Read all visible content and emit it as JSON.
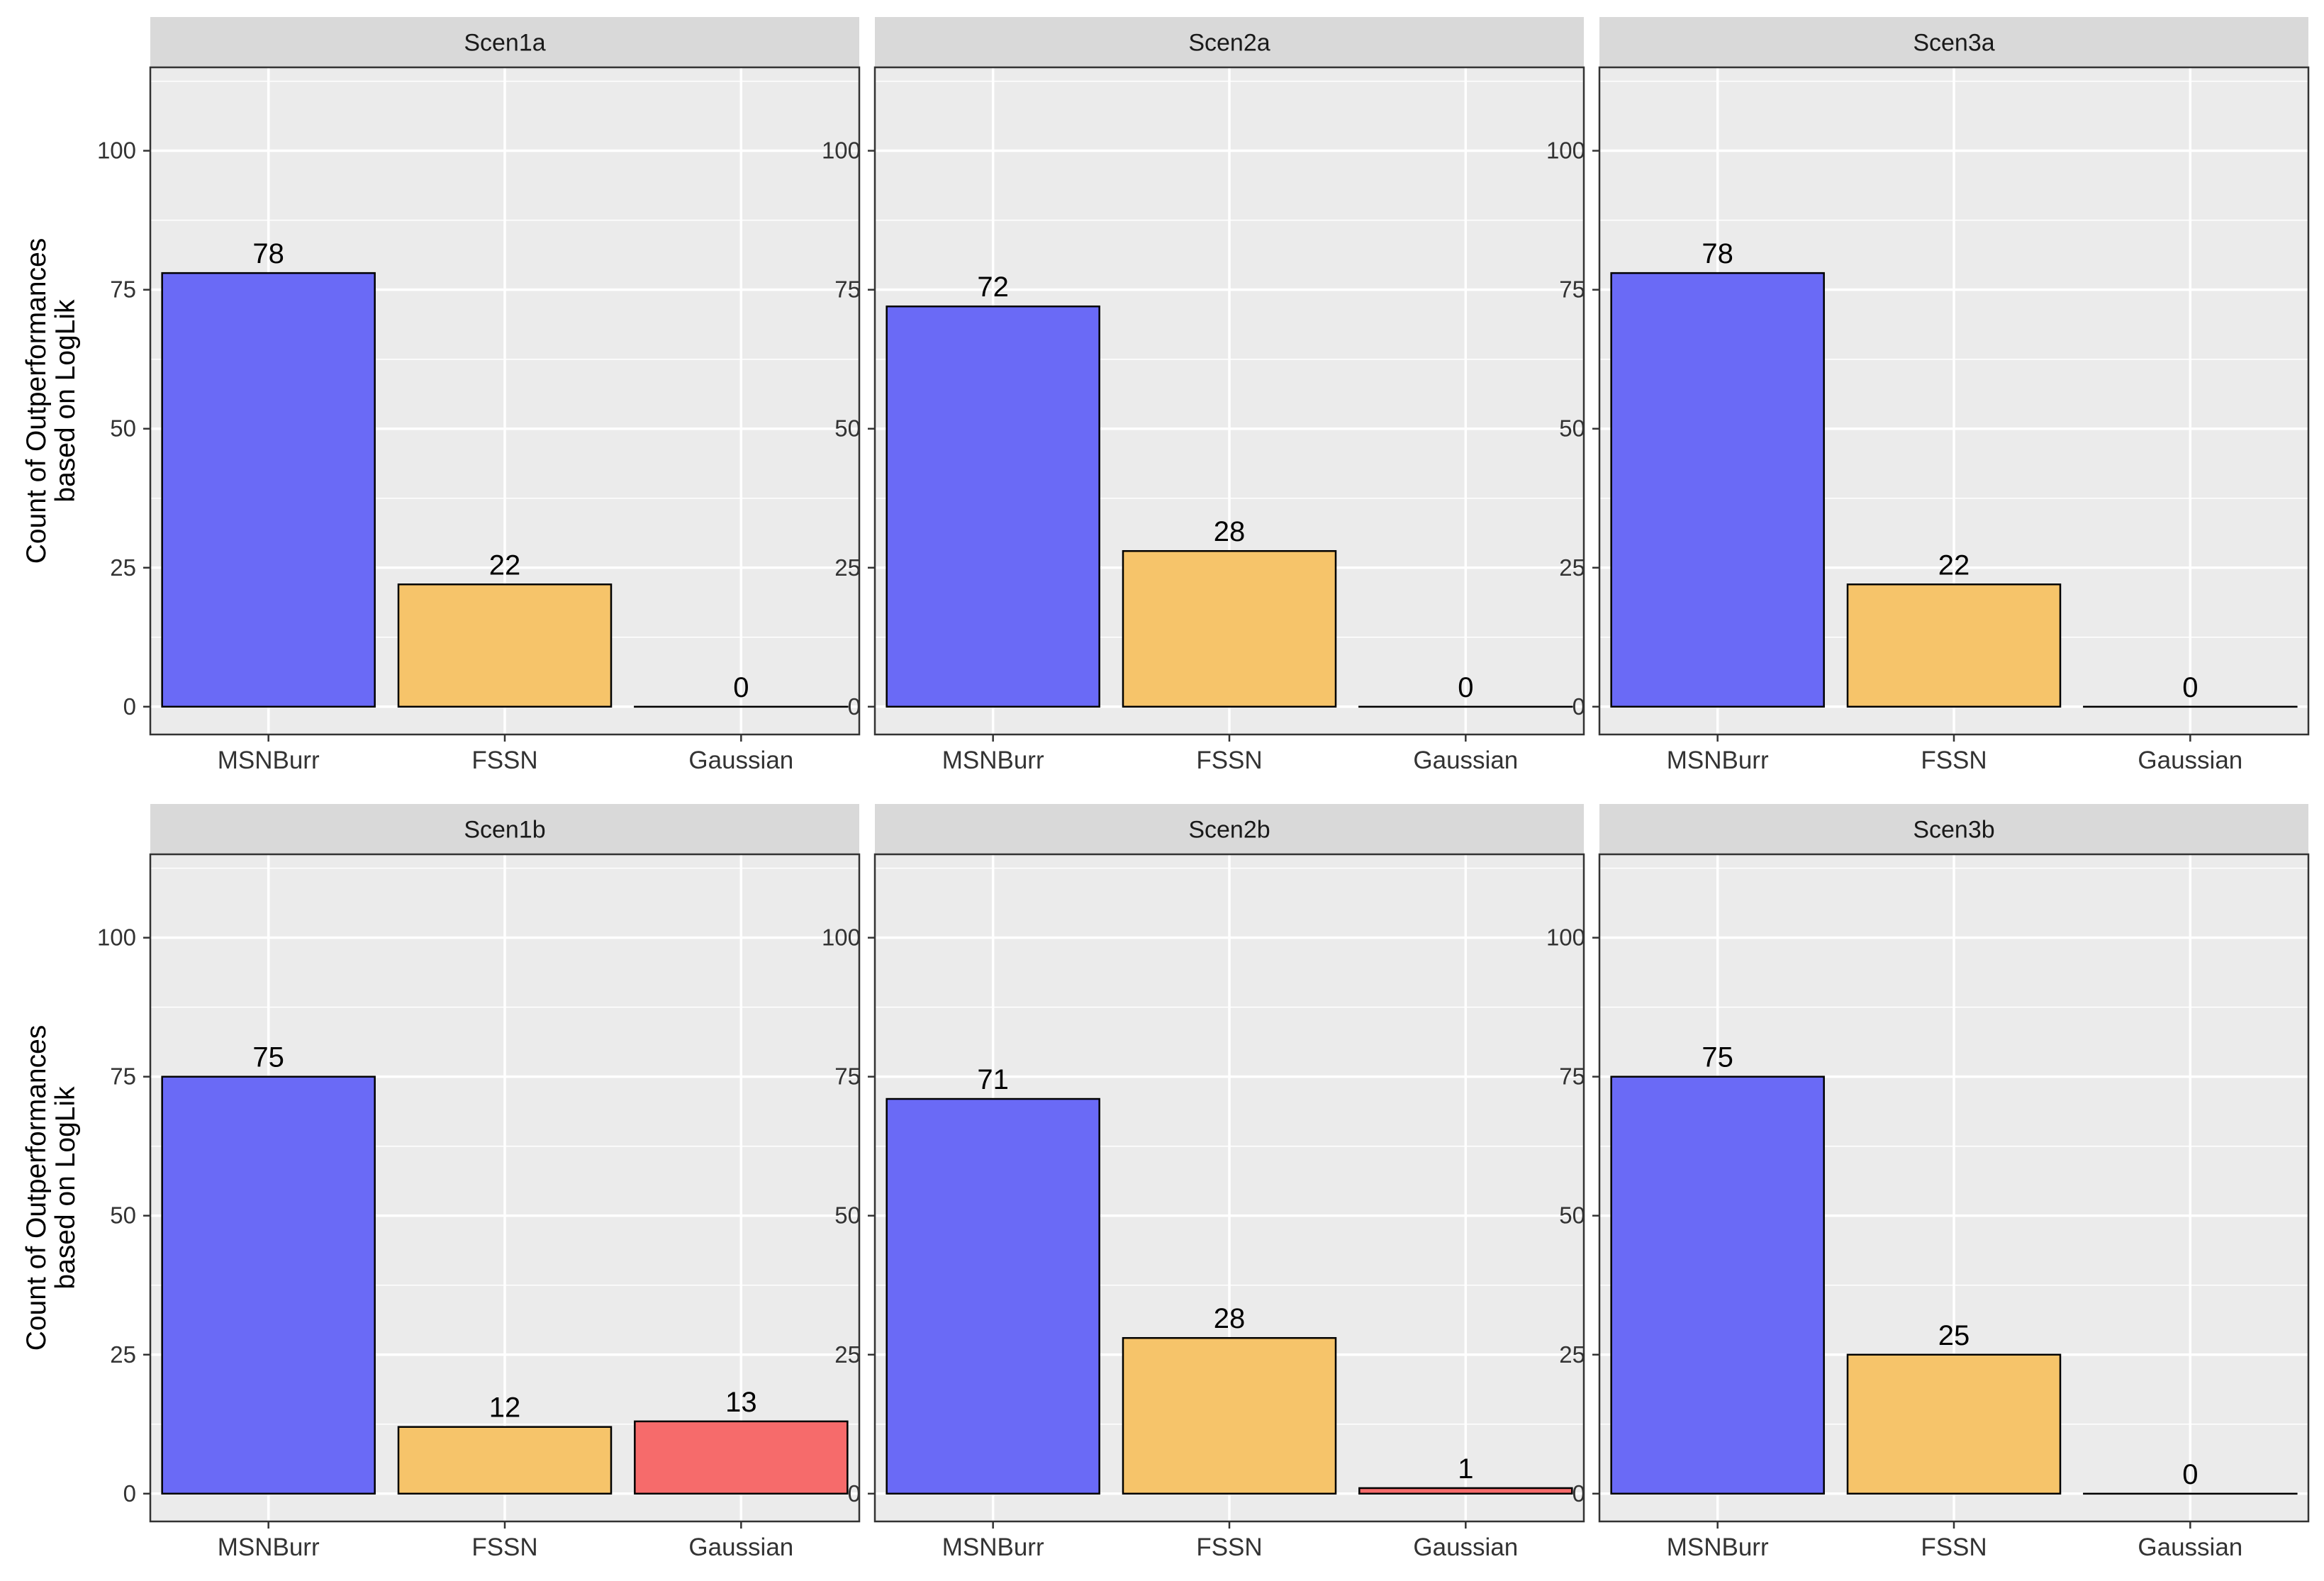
{
  "chart_data": {
    "type": "bar",
    "layout": "facet-grid",
    "ylabel_lines": [
      "Count of Outperformances",
      "based on LogLik"
    ],
    "xlabel": "",
    "ylim": [
      -5,
      115
    ],
    "y_ticks": [
      0,
      25,
      50,
      75,
      100
    ],
    "categories": [
      "MSNBurr",
      "FSSN",
      "Gaussian"
    ],
    "colors": {
      "MSNBurr": "#6a6af6",
      "FSSN": "#f6c46a",
      "Gaussian": "#f66b6b",
      "panel_background": "#ebebeb",
      "strip_background": "#d9d9d9",
      "grid_line": "#ffffff",
      "outline": "#000000"
    },
    "panels": [
      {
        "title": "Scen1a",
        "values": [
          78,
          22,
          0
        ]
      },
      {
        "title": "Scen2a",
        "values": [
          72,
          28,
          0
        ]
      },
      {
        "title": "Scen3a",
        "values": [
          78,
          22,
          0
        ]
      },
      {
        "title": "Scen1b",
        "values": [
          75,
          12,
          13
        ]
      },
      {
        "title": "Scen2b",
        "values": [
          71,
          28,
          1
        ]
      },
      {
        "title": "Scen3b",
        "values": [
          75,
          25,
          0
        ]
      }
    ]
  }
}
